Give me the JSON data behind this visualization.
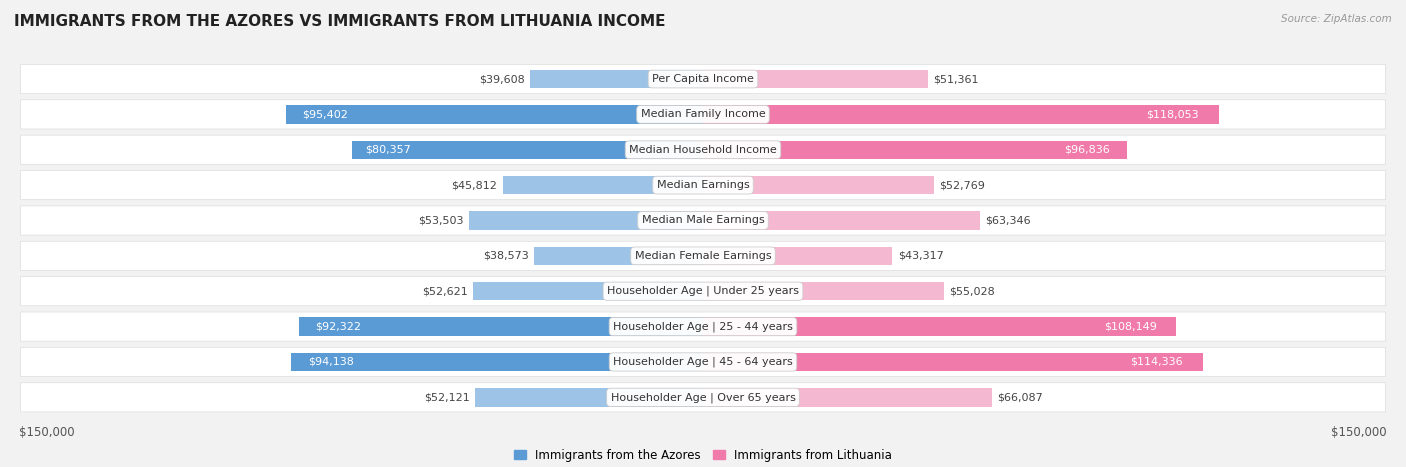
{
  "title": "IMMIGRANTS FROM THE AZORES VS IMMIGRANTS FROM LITHUANIA INCOME",
  "source": "Source: ZipAtlas.com",
  "categories": [
    "Per Capita Income",
    "Median Family Income",
    "Median Household Income",
    "Median Earnings",
    "Median Male Earnings",
    "Median Female Earnings",
    "Householder Age | Under 25 years",
    "Householder Age | 25 - 44 years",
    "Householder Age | 45 - 64 years",
    "Householder Age | Over 65 years"
  ],
  "azores_values": [
    39608,
    95402,
    80357,
    45812,
    53503,
    38573,
    52621,
    92322,
    94138,
    52121
  ],
  "lithuania_values": [
    51361,
    118053,
    96836,
    52769,
    63346,
    43317,
    55028,
    108149,
    114336,
    66087
  ],
  "azores_labels": [
    "$39,608",
    "$95,402",
    "$80,357",
    "$45,812",
    "$53,503",
    "$38,573",
    "$52,621",
    "$92,322",
    "$94,138",
    "$52,121"
  ],
  "lithuania_labels": [
    "$51,361",
    "$118,053",
    "$96,836",
    "$52,769",
    "$63,346",
    "$43,317",
    "$55,028",
    "$108,149",
    "$114,336",
    "$66,087"
  ],
  "azores_color_dark": "#5b9bd5",
  "azores_color_light": "#9dc3e6",
  "lithuania_color_dark": "#f07aaa",
  "lithuania_color_light": "#f4b8d0",
  "max_value": 150000,
  "legend_azores": "Immigrants from the Azores",
  "legend_lithuania": "Immigrants from Lithuania",
  "background_color": "#f2f2f2",
  "row_bg_color": "#ffffff",
  "inside_label_threshold_ratio": 0.45,
  "title_fontsize": 11,
  "label_fontsize": 8,
  "category_fontsize": 8,
  "tick_fontsize": 8.5
}
